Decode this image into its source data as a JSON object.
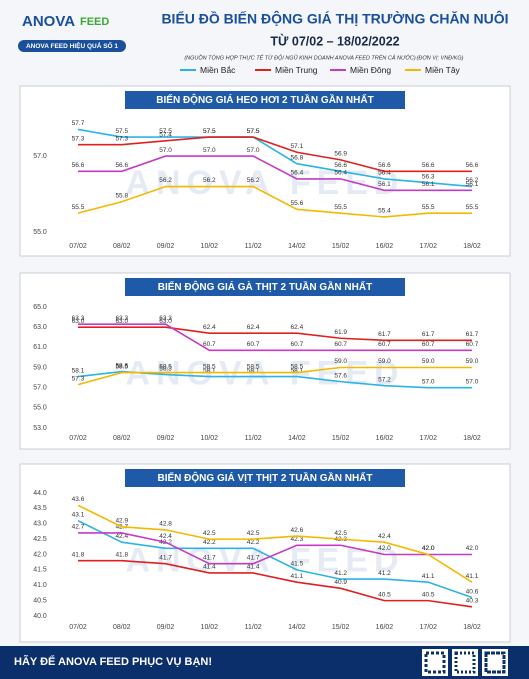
{
  "header": {
    "brand": "ANOVA",
    "brand2": "FEED",
    "slogan": "ANOVA FEED HIỆU QUẢ SỐ 1",
    "title": "BIỂU ĐỒ BIẾN ĐỘNG GIÁ THỊ TRƯỜNG CHĂN NUÔI",
    "subtitle": "TỪ 07/02 – 18/02/2022",
    "source": "(NGUỒN TỔNG HỢP THỰC TẾ TỪ ĐỘI NGŨ KINH DOANH ANOVA FEED TRÊN CẢ NƯỚC)",
    "unit": "(ĐƠN VỊ: VNĐ/KG)"
  },
  "watermark": "ANOVA FEED",
  "footer": {
    "text": "HÃY ĐỂ ANOVA FEED PHỤC VỤ BẠN!"
  },
  "chart_data": [
    {
      "type": "line",
      "title": "BIẾN ĐỘNG GIÁ HEO HƠI 2 TUẦN GẦN NHẤT",
      "categories": [
        "07/02",
        "08/02",
        "09/02",
        "10/02",
        "11/02",
        "14/02",
        "15/02",
        "16/02",
        "17/02",
        "18/02"
      ],
      "ylim": [
        54.9,
        58.0
      ],
      "yticks": [
        {
          "value": 55,
          "label": "55.0"
        },
        {
          "value": 57,
          "label": "57.0"
        }
      ],
      "series": [
        {
          "name": "Miền Bắc",
          "color": "#2bb3e6",
          "values": [
            57.7,
            57.5,
            57.5,
            57.5,
            57.5,
            56.8,
            56.6,
            56.4,
            56.3,
            56.2
          ],
          "value_labels": [
            "57.7",
            "57.5",
            "57.5",
            "57.5",
            "57.5",
            "56.8",
            "56.6",
            "56.4",
            "56.3",
            "56.2"
          ]
        },
        {
          "name": "Miền Trung",
          "color": "#e02020",
          "values": [
            57.3,
            57.3,
            57.4,
            57.5,
            57.5,
            57.1,
            56.9,
            56.6,
            56.6,
            56.6
          ],
          "value_labels": [
            "57.3",
            "57.3",
            "57.4",
            "57.5",
            "57.5",
            "57.1",
            "56.9",
            "56.6",
            "56.6",
            "56.6"
          ]
        },
        {
          "name": "Miền Đông",
          "color": "#c43bc4",
          "values": [
            56.6,
            56.6,
            57,
            57,
            57,
            56.4,
            56.4,
            56.1,
            56.1,
            56.1
          ],
          "value_labels": [
            "56.6",
            "56.6",
            "57.0",
            "57.0",
            "57.0",
            "56.4",
            "56.4",
            "56.1",
            "56.1",
            "56.1"
          ]
        },
        {
          "name": "Miền Tây",
          "color": "#f5b800",
          "values": [
            55.5,
            55.8,
            56.2,
            56.2,
            56.2,
            55.6,
            55.5,
            55.4,
            55.5,
            55.5
          ],
          "value_labels": [
            "55.5",
            "55.8",
            "56.2",
            "56.2",
            "56.2",
            "55.6",
            "55.5",
            "55.4",
            "55.5",
            "55.5"
          ]
        }
      ]
    },
    {
      "type": "line",
      "title": "BIẾN ĐỘNG GIÁ GÀ THỊT 2 TUẦN GẦN NHẤT",
      "categories": [
        "07/02",
        "08/02",
        "09/02",
        "10/02",
        "11/02",
        "14/02",
        "15/02",
        "16/02",
        "17/02",
        "18/02"
      ],
      "ylim": [
        53,
        65
      ],
      "yticks": [
        {
          "value": 53,
          "label": "53.0"
        },
        {
          "value": 55,
          "label": "55.0"
        },
        {
          "value": 57,
          "label": "57.0"
        },
        {
          "value": 59,
          "label": "59.0"
        },
        {
          "value": 61,
          "label": "61.0"
        },
        {
          "value": 63,
          "label": "63.0"
        },
        {
          "value": 65,
          "label": "65.0"
        }
      ],
      "series": [
        {
          "name": "Miền Bắc",
          "color": "#2bb3e6",
          "values": [
            58.1,
            58.6,
            58.3,
            58.1,
            58.1,
            58.1,
            57.6,
            57.2,
            57,
            57
          ],
          "value_labels": [
            "58.1",
            "58.6",
            "58.3",
            "58.1",
            "58.1",
            "58.1",
            "57.6",
            "57.2",
            "57.0",
            "57.0"
          ]
        },
        {
          "name": "Miền Trung",
          "color": "#e02020",
          "values": [
            63,
            63,
            63,
            62.4,
            62.4,
            62.4,
            61.9,
            61.7,
            61.7,
            61.7
          ],
          "value_labels": [
            "63.0",
            "63.0",
            "63.0",
            "62.4",
            "62.4",
            "62.4",
            "61.9",
            "61.7",
            "61.7",
            "61.7"
          ]
        },
        {
          "name": "Miền Đông",
          "color": "#c43bc4",
          "values": [
            63.3,
            63.3,
            63.3,
            60.7,
            60.7,
            60.7,
            60.7,
            60.7,
            60.7,
            60.7
          ],
          "value_labels": [
            "63.3",
            "63.3",
            "63.3",
            "60.7",
            "60.7",
            "60.7",
            "60.7",
            "60.7",
            "60.7",
            "60.7"
          ]
        },
        {
          "name": "Miền Tây",
          "color": "#f5b800",
          "values": [
            57.3,
            58.5,
            58.5,
            58.5,
            58.5,
            58.5,
            59,
            59,
            59,
            59
          ],
          "value_labels": [
            "57.3",
            "58.5",
            "58.5",
            "58.5",
            "58.5",
            "58.5",
            "59.0",
            "59.0",
            "59.0",
            "59.0"
          ]
        }
      ]
    },
    {
      "type": "line",
      "title": "BIẾN ĐỘNG GIÁ VỊT THỊT 2 TUẦN GẦN NHẤT",
      "categories": [
        "07/02",
        "08/02",
        "09/02",
        "10/02",
        "11/02",
        "14/02",
        "15/02",
        "16/02",
        "17/02",
        "18/02"
      ],
      "ylim": [
        40,
        44
      ],
      "yticks": [
        {
          "value": 40,
          "label": "40.0"
        },
        40.5,
        {
          "value": 41,
          "label": "41.0"
        },
        41.5,
        {
          "value": 42,
          "label": "42.0"
        },
        42.5,
        {
          "value": 43,
          "label": "43.0"
        },
        43.5,
        {
          "value": 44,
          "label": "44.0"
        }
      ],
      "series": [
        {
          "name": "Miền Bắc",
          "color": "#2bb3e6",
          "values": [
            43.1,
            42.4,
            42.2,
            42.2,
            42.2,
            41.5,
            41.2,
            41.2,
            41.1,
            40.6
          ],
          "value_labels": [
            "43.1",
            "42.4",
            "42.2",
            "42.2",
            "42.2",
            "41.5",
            "41.2",
            "41.2",
            "41.1",
            "40.6"
          ]
        },
        {
          "name": "Miền Trung",
          "color": "#e02020",
          "values": [
            41.8,
            41.8,
            41.7,
            41.4,
            41.4,
            41.1,
            40.9,
            40.5,
            40.5,
            40.3
          ],
          "value_labels": [
            "41.8",
            "41.8",
            "41.7",
            "41.4",
            "41.4",
            "41.1",
            "40.9",
            "40.5",
            "40.5",
            "40.3"
          ]
        },
        {
          "name": "Miền Đông",
          "color": "#c43bc4",
          "values": [
            42.7,
            42.7,
            42.4,
            41.7,
            41.7,
            42.3,
            42.3,
            42,
            42,
            42
          ],
          "value_labels": [
            "42.7",
            "42.7",
            "42.4",
            "41.7",
            "41.7",
            "42.3",
            "42.3",
            "42.0",
            "42.0",
            "42.0"
          ]
        },
        {
          "name": "Miền Tây",
          "color": "#f5b800",
          "values": [
            43.6,
            42.9,
            42.8,
            42.5,
            42.5,
            42.6,
            42.5,
            42.4,
            42,
            41.1
          ],
          "value_labels": [
            "43.6",
            "42.9",
            "42.8",
            "42.5",
            "42.5",
            "42.6",
            "42.5",
            "42.4",
            "42.0",
            "41.1"
          ]
        }
      ]
    }
  ]
}
